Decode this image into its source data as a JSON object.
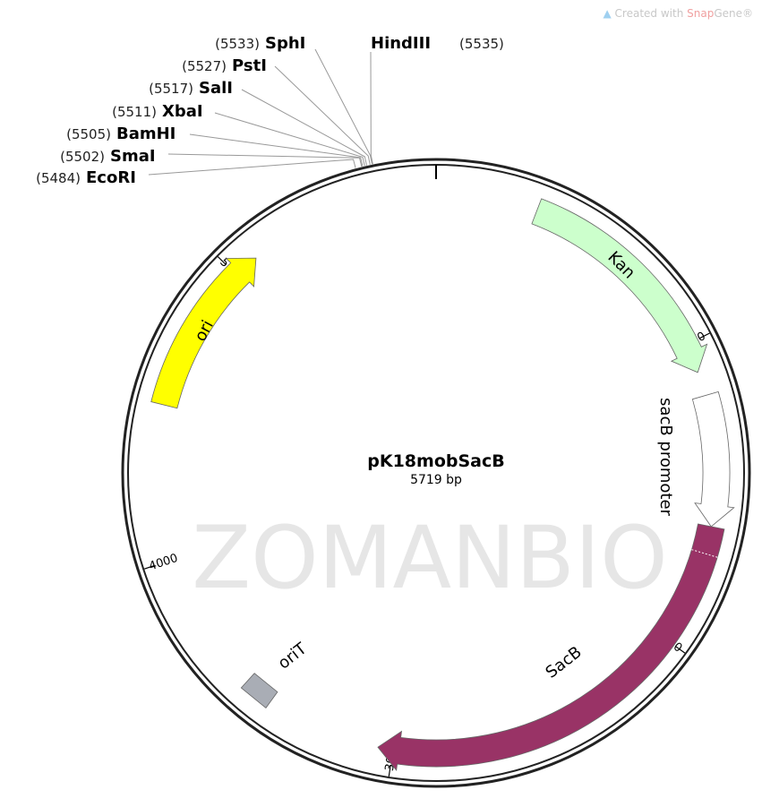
{
  "credit": {
    "prefix": "Created with ",
    "brand": "Snap",
    "brand2": "Gene®"
  },
  "watermark": "ZOMANBIO",
  "plasmid": {
    "name": "pK18mobSacB",
    "length_label": "5719 bp",
    "length_bp": 5719
  },
  "ticks": [
    {
      "bp": 0,
      "label": ""
    },
    {
      "bp": 1000,
      "label": "1000"
    },
    {
      "bp": 2000,
      "label": "2000"
    },
    {
      "bp": 3000,
      "label": "3000"
    },
    {
      "bp": 4000,
      "label": "4000"
    },
    {
      "bp": 5000,
      "label": "5000"
    }
  ],
  "enzymes": [
    {
      "name": "SphI",
      "pos": "(5533)",
      "bp": 5533
    },
    {
      "name": "HindIII",
      "pos": "(5535)",
      "bp": 5535
    },
    {
      "name": "PstI",
      "pos": "(5527)",
      "bp": 5527
    },
    {
      "name": "SalI",
      "pos": "(5517)",
      "bp": 5517
    },
    {
      "name": "XbaI",
      "pos": "(5511)",
      "bp": 5511
    },
    {
      "name": "BamHI",
      "pos": "(5505)",
      "bp": 5505
    },
    {
      "name": "SmaI",
      "pos": "(5502)",
      "bp": 5502
    },
    {
      "name": "EcoRI",
      "pos": "(5484)",
      "bp": 5484
    }
  ],
  "features": [
    {
      "name": "Kan",
      "start": 334,
      "end": 1096,
      "color": "#ccffcc",
      "type": "arrow"
    },
    {
      "name": "sacB promoter",
      "start": 1175,
      "end": 1605,
      "color": "#ffffff",
      "type": "arrow"
    },
    {
      "name": "SacB",
      "start": 1605,
      "end": 3050,
      "color": "#993366",
      "type": "arrow"
    },
    {
      "name": "oriT",
      "start": 3430,
      "end": 3530,
      "color": "#a9adb5",
      "type": "box"
    },
    {
      "name": "ori",
      "start": 4512,
      "end": 5084,
      "color": "#ffff00",
      "type": "arrow"
    }
  ]
}
